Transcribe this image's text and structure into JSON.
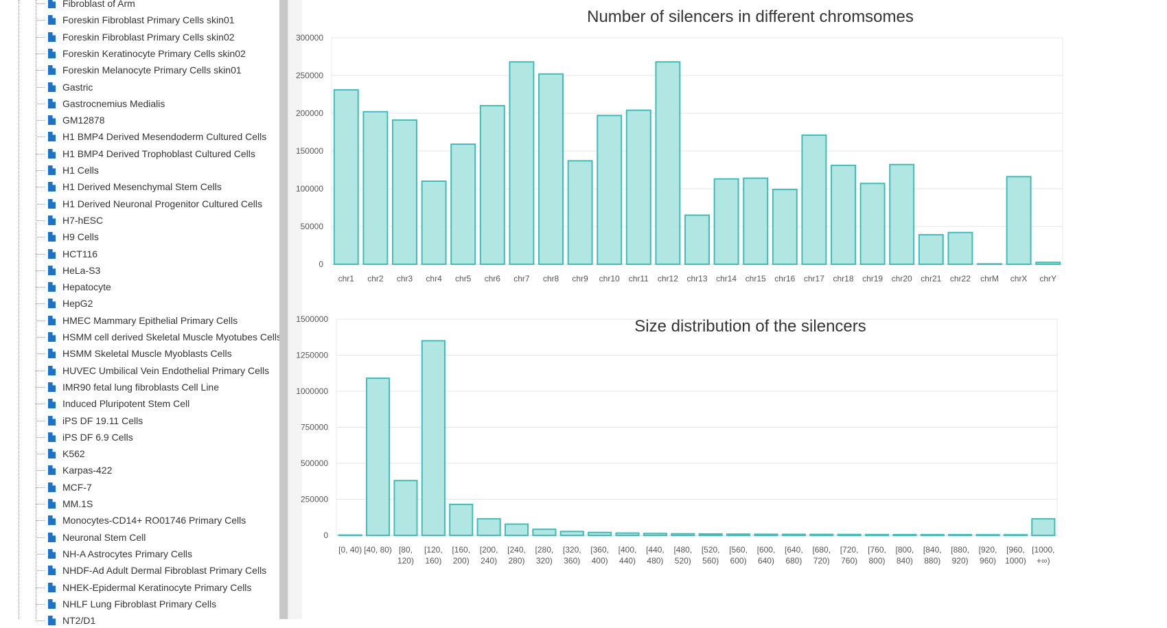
{
  "tree": {
    "items": [
      "Fibroblast of Arm",
      "Foreskin Fibroblast Primary Cells skin01",
      "Foreskin Fibroblast Primary Cells skin02",
      "Foreskin Keratinocyte Primary Cells skin02",
      "Foreskin Melanocyte Primary Cells skin01",
      "Gastric",
      "Gastrocnemius Medialis",
      "GM12878",
      "H1 BMP4 Derived Mesendoderm Cultured Cells",
      "H1 BMP4 Derived Trophoblast Cultured Cells",
      "H1 Cells",
      "H1 Derived Mesenchymal Stem Cells",
      "H1 Derived Neuronal Progenitor Cultured Cells",
      "H7-hESC",
      "H9 Cells",
      "HCT116",
      "HeLa-S3",
      "Hepatocyte",
      "HepG2",
      "HMEC Mammary Epithelial Primary Cells",
      "HSMM cell derived Skeletal Muscle Myotubes Cells",
      "HSMM Skeletal Muscle Myoblasts Cells",
      "HUVEC Umbilical Vein Endothelial Primary Cells",
      "IMR90 fetal lung fibroblasts Cell Line",
      "Induced Pluripotent Stem Cell",
      "iPS DF 19.11 Cells",
      "iPS DF 6.9 Cells",
      "K562",
      "Karpas-422",
      "MCF-7",
      "MM.1S",
      "Monocytes-CD14+ RO01746 Primary Cells",
      "Neuronal Stem Cell",
      "NH-A Astrocytes Primary Cells",
      "NHDF-Ad Adult Dermal Fibroblast Primary Cells",
      "NHEK-Epidermal Keratinocyte Primary Cells",
      "NHLF Lung Fibroblast Primary Cells",
      "NT2/D1"
    ],
    "item_icon": "file-icon",
    "icon_color": "#1a73c9"
  },
  "colors": {
    "bar_fill": "#b2e6e3",
    "bar_stroke": "#3dbdb8"
  },
  "chart_data": [
    {
      "type": "bar",
      "title": "Number of silencers in different chromsomes",
      "categories": [
        "chr1",
        "chr2",
        "chr3",
        "chr4",
        "chr5",
        "chr6",
        "chr7",
        "chr8",
        "chr9",
        "chr10",
        "chr11",
        "chr12",
        "chr13",
        "chr14",
        "chr15",
        "chr16",
        "chr17",
        "chr18",
        "chr19",
        "chr20",
        "chr21",
        "chr22",
        "chrM",
        "chrX",
        "chrY"
      ],
      "values": [
        231000,
        202000,
        191000,
        110000,
        159000,
        210000,
        268000,
        252000,
        137000,
        197000,
        204000,
        268000,
        65000,
        113000,
        114000,
        99000,
        171000,
        131000,
        107000,
        132000,
        39000,
        42000,
        500,
        116000,
        2500
      ],
      "ylim": [
        0,
        300000
      ],
      "yticks": [
        0,
        50000,
        100000,
        150000,
        200000,
        250000,
        300000
      ],
      "grid": true
    },
    {
      "type": "bar",
      "title": "Size distribution of the silencers",
      "categories": [
        [
          "[0, 40)"
        ],
        [
          "[40, 80)"
        ],
        [
          "[80,",
          "120)"
        ],
        [
          "[120,",
          "160)"
        ],
        [
          "[160,",
          "200)"
        ],
        [
          "[200,",
          "240)"
        ],
        [
          "[240,",
          "280)"
        ],
        [
          "[280,",
          "320)"
        ],
        [
          "[320,",
          "360)"
        ],
        [
          "[360,",
          "400)"
        ],
        [
          "[400,",
          "440)"
        ],
        [
          "[440,",
          "480)"
        ],
        [
          "[480,",
          "520)"
        ],
        [
          "[520,",
          "560)"
        ],
        [
          "[560,",
          "600)"
        ],
        [
          "[600,",
          "640)"
        ],
        [
          "[640,",
          "680)"
        ],
        [
          "[680,",
          "720)"
        ],
        [
          "[720,",
          "760)"
        ],
        [
          "[760,",
          "800)"
        ],
        [
          "[800,",
          "840)"
        ],
        [
          "[840,",
          "880)"
        ],
        [
          "[880,",
          "920)"
        ],
        [
          "[920,",
          "960)"
        ],
        [
          "[960,",
          "1000)"
        ],
        [
          "[1000,",
          "+∞)"
        ]
      ],
      "values": [
        2000,
        1090000,
        380000,
        1350000,
        215000,
        115000,
        78000,
        42000,
        27000,
        20000,
        16000,
        13000,
        11000,
        9500,
        8500,
        7500,
        7000,
        6500,
        6000,
        5500,
        5000,
        4800,
        4500,
        4200,
        4000,
        115000
      ],
      "ylim": [
        0,
        1500000
      ],
      "yticks": [
        0,
        250000,
        500000,
        750000,
        1000000,
        1250000,
        1500000
      ],
      "grid": true
    }
  ]
}
